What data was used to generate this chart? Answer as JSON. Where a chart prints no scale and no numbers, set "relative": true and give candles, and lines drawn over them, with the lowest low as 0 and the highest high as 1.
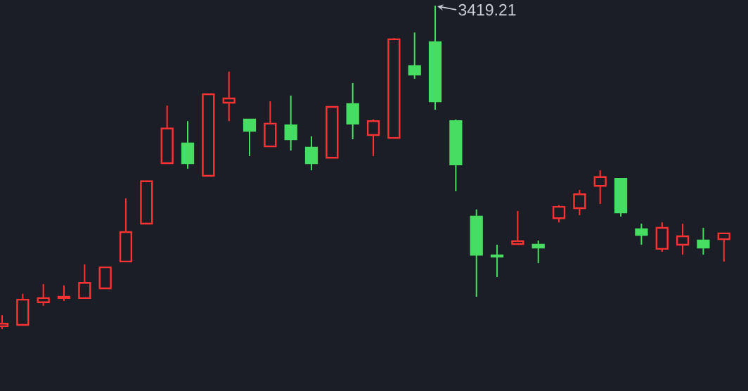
{
  "chart_data": {
    "type": "candlestick",
    "relative": true,
    "categories": [
      null,
      null,
      null,
      null,
      null,
      null,
      null,
      null,
      null,
      null,
      null,
      null,
      null,
      null,
      null,
      null,
      null,
      null,
      null,
      null,
      null,
      null,
      null,
      null,
      null,
      null,
      null,
      null,
      null,
      null,
      null,
      null,
      null,
      null,
      null,
      null
    ],
    "ohlc": [
      [
        0.009,
        0.043,
        0,
        0.017
      ],
      [
        0.013,
        0.109,
        0.011,
        0.091
      ],
      [
        0.083,
        0.139,
        0.072,
        0.096
      ],
      [
        0.096,
        0.135,
        0.087,
        0.1
      ],
      [
        0.096,
        0.2,
        0.096,
        0.143
      ],
      [
        0.126,
        0.191,
        0.124,
        0.191
      ],
      [
        0.209,
        0.404,
        0.209,
        0.3
      ],
      [
        0.326,
        0.459,
        0.326,
        0.457
      ],
      [
        0.513,
        0.691,
        0.513,
        0.62
      ],
      [
        0.574,
        0.643,
        0.496,
        0.513
      ],
      [
        0.474,
        0.726,
        0.472,
        0.726
      ],
      [
        0.7,
        0.796,
        0.643,
        0.713
      ],
      [
        0.648,
        0.648,
        0.535,
        0.613
      ],
      [
        0.565,
        0.704,
        0.565,
        0.635
      ],
      [
        0.63,
        0.722,
        0.552,
        0.587
      ],
      [
        0.561,
        0.596,
        0.491,
        0.513
      ],
      [
        0.53,
        0.687,
        0.53,
        0.687
      ],
      [
        0.696,
        0.761,
        0.587,
        0.635
      ],
      [
        0.6,
        0.648,
        0.535,
        0.643
      ],
      [
        0.591,
        0.9,
        0.589,
        0.896
      ],
      [
        0.813,
        0.917,
        0.774,
        0.787
      ],
      [
        0.887,
        1,
        0.678,
        0.704
      ],
      [
        0.643,
        0.648,
        0.426,
        0.509
      ],
      [
        0.348,
        0.37,
        0.1,
        0.23
      ],
      [
        0.228,
        0.261,
        0.161,
        0.224
      ],
      [
        0.263,
        0.365,
        0.261,
        0.272
      ],
      [
        0.261,
        0.274,
        0.204,
        0.252
      ],
      [
        0.343,
        0.383,
        0.33,
        0.378
      ],
      [
        0.374,
        0.43,
        0.352,
        0.417
      ],
      [
        0.443,
        0.491,
        0.387,
        0.47
      ],
      [
        0.465,
        0.465,
        0.348,
        0.361
      ],
      [
        0.309,
        0.326,
        0.261,
        0.291
      ],
      [
        0.248,
        0.33,
        0.239,
        0.313
      ],
      [
        0.261,
        0.326,
        0.23,
        0.287
      ],
      [
        0.274,
        0.313,
        0.23,
        0.252
      ],
      [
        0.278,
        0.296,
        0.209,
        0.296
      ]
    ],
    "colors": [
      "#ff3333",
      "#ff3333",
      "#ff3333",
      "#ff3333",
      "#ff3333",
      "#ff3333",
      "#ff3333",
      "#ff3333",
      "#ff3333",
      "#47dd63",
      "#ff3333",
      "#ff3333",
      "#47dd63",
      "#ff3333",
      "#47dd63",
      "#47dd63",
      "#ff3333",
      "#47dd63",
      "#ff3333",
      "#ff3333",
      "#47dd63",
      "#47dd63",
      "#47dd63",
      "#47dd63",
      "#47dd63",
      "#ff3333",
      "#47dd63",
      "#ff3333",
      "#ff3333",
      "#ff3333",
      "#47dd63",
      "#47dd63",
      "#ff3333",
      "#ff3333",
      "#47dd63",
      "#ff3333"
    ],
    "annotations": [
      "3419.21"
    ]
  }
}
